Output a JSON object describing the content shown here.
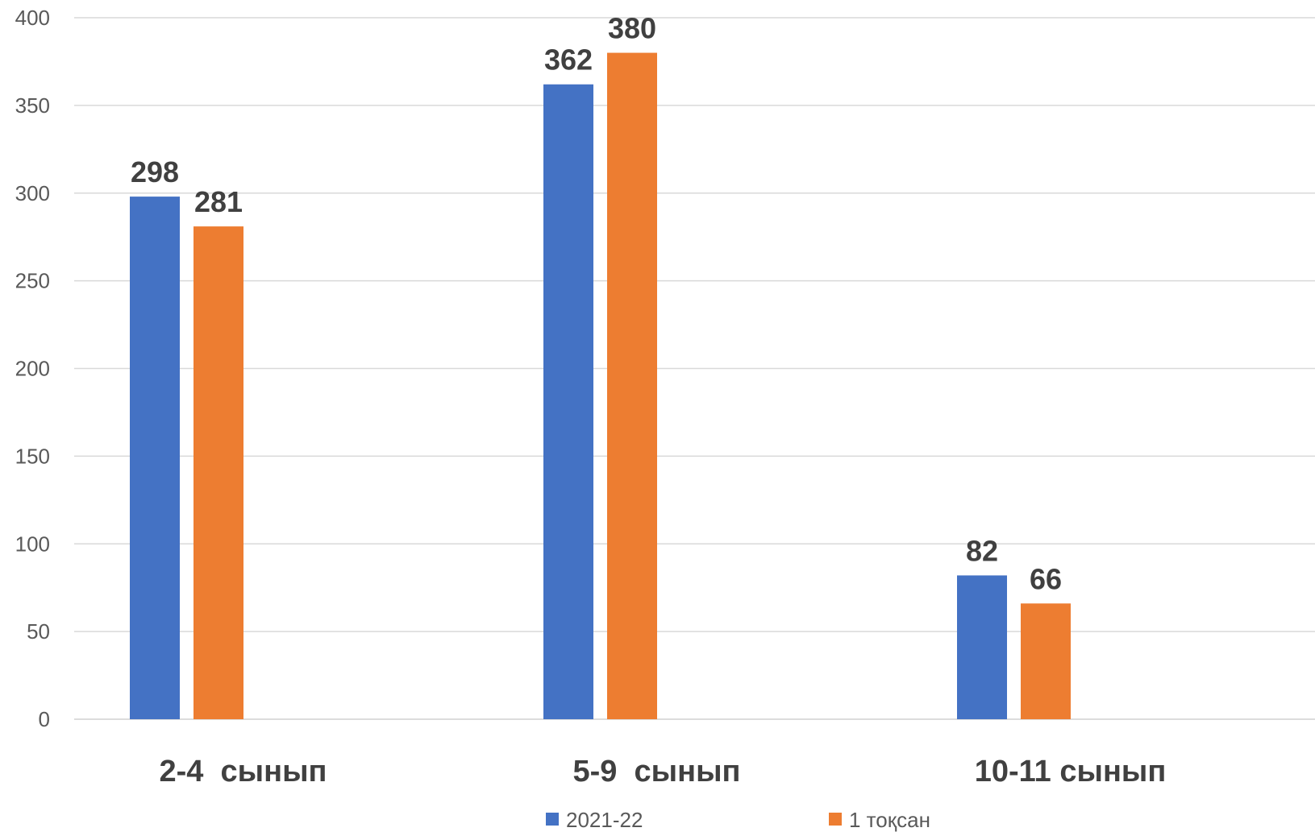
{
  "chart_data": {
    "type": "bar",
    "title": "",
    "xlabel": "",
    "ylabel": "",
    "categories": [
      "2-4  сынып",
      "5-9  сынып",
      "10-11 сынып"
    ],
    "series": [
      {
        "name": "2021-22",
        "values": [
          298,
          362,
          82
        ],
        "color": "#4472C4"
      },
      {
        "name": "1 тоқсан",
        "values": [
          281,
          380,
          66
        ],
        "color": "#ED7D31"
      }
    ],
    "ylim": [
      0,
      400
    ],
    "yticks": [
      0,
      50,
      100,
      150,
      200,
      250,
      300,
      350,
      400
    ],
    "grid": true,
    "data_labels": true,
    "legend_position": "bottom"
  }
}
